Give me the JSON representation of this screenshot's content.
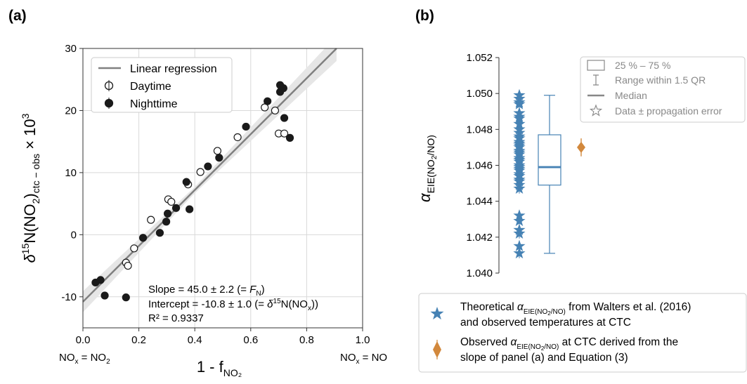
{
  "panel_labels": {
    "a": "(a)",
    "b": "(b)"
  },
  "colors": {
    "regression": "#808080",
    "ci_band": "#e6e6e6",
    "night": "#1a1a1a",
    "blue": "#4682b4",
    "orange": "#d2883c",
    "grid": "#d9d9d9",
    "legend_gray": "#888888"
  },
  "chart_data": [
    {
      "id": "a",
      "type": "scatter",
      "xlim": [
        0.0,
        1.0
      ],
      "ylim": [
        -15,
        30
      ],
      "xticks": [
        "0.0",
        "0.2",
        "0.4",
        "0.6",
        "0.8",
        "1.0"
      ],
      "yticks": [
        "-10",
        "0",
        "10",
        "20",
        "30"
      ],
      "grid": true,
      "legend_position": "upper-left",
      "xlabel": {
        "main": "1 - f",
        "sub": "NO₂"
      },
      "ylabel": {
        "pre": "δ",
        "sup": "15",
        "main": "N(NO",
        "sub1": "2",
        "close": ")",
        "sub2": "ctc − obs",
        "post": " × 10",
        "sup2": "3"
      },
      "x_end_labels": {
        "left": {
          "a": "NO",
          "b": "x",
          "c": " = NO",
          "d": "2"
        },
        "right": {
          "a": "NO",
          "b": "x",
          "c": " = NO"
        }
      },
      "legend": {
        "regression": "Linear regression",
        "day": "Daytime",
        "night": "Nighttime"
      },
      "regression": {
        "slope": 45.0,
        "intercept": -10.8
      },
      "annotation": {
        "slope": {
          "a": "Slope = 45.0 ± 2.2 (= ",
          "b": "F",
          "c": "N",
          "d": ")"
        },
        "intercept": {
          "a": "Intercept = -10.8 ± 1.0 (= ",
          "b": "δ",
          "c": "15",
          "d": "N(NO",
          "e": "x",
          "f": "))"
        },
        "r2": {
          "a": "R² = 0.9337"
        }
      },
      "series": [
        {
          "name": "Daytime",
          "x": [
            0.154,
            0.161,
            0.183,
            0.243,
            0.305,
            0.316,
            0.376,
            0.42,
            0.481,
            0.553,
            0.65,
            0.687,
            0.7,
            0.72
          ],
          "y": [
            -4.5,
            -5.0,
            -2.2,
            2.4,
            5.7,
            5.3,
            8.1,
            10.1,
            13.5,
            15.7,
            20.5,
            20.0,
            16.3,
            16.3
          ]
        },
        {
          "name": "Nighttime",
          "x": [
            0.045,
            0.063,
            0.078,
            0.154,
            0.215,
            0.275,
            0.298,
            0.303,
            0.333,
            0.37,
            0.381,
            0.447,
            0.487,
            0.583,
            0.66,
            0.705,
            0.705,
            0.711,
            0.717,
            0.72,
            0.74
          ],
          "y": [
            -7.7,
            -7.3,
            -9.8,
            -10.1,
            -0.5,
            0.3,
            2.1,
            3.4,
            4.3,
            8.5,
            4.1,
            11.0,
            12.4,
            17.4,
            21.5,
            23.0,
            24.1,
            23.7,
            23.6,
            18.8,
            15.6
          ]
        }
      ]
    },
    {
      "id": "b",
      "type": "box",
      "ylim": [
        1.04,
        1.052
      ],
      "yticks": [
        "1.040",
        "1.042",
        "1.044",
        "1.046",
        "1.048",
        "1.050",
        "1.052"
      ],
      "grid": false,
      "legend_position": "top-right",
      "ylabel": {
        "main": "α",
        "sub": "EIE(NO",
        "subsub": "2",
        "tail": "/NO)"
      },
      "legend": {
        "box": "25 % – 75 %",
        "range": "Range within 1.5 QR",
        "median": "Median",
        "data": "Data ± propagation error"
      },
      "box": {
        "q1": 1.0449,
        "median": 1.0459,
        "q3": 1.0477,
        "whisker_low": 1.0411,
        "whisker_high": 1.0499
      },
      "theoretical_values": [
        1.0411,
        1.0415,
        1.0422,
        1.0424,
        1.0429,
        1.0432,
        1.0447,
        1.0449,
        1.0451,
        1.0452,
        1.0454,
        1.0455,
        1.0457,
        1.0458,
        1.0459,
        1.046,
        1.0462,
        1.0463,
        1.0464,
        1.0466,
        1.0467,
        1.0468,
        1.047,
        1.0471,
        1.0472,
        1.0473,
        1.0475,
        1.0476,
        1.0478,
        1.048,
        1.0483,
        1.0486,
        1.0487,
        1.0489,
        1.0494,
        1.0495,
        1.0497,
        1.0499
      ],
      "observed": {
        "value": 1.047,
        "error": 0.0005
      },
      "bottom_legend": {
        "theoretical": {
          "a": "Theoretical ",
          "b": "α",
          "c": "EIE(NO",
          "d": "2",
          "e": "/NO)",
          "f": " from Walters et al. (2016)",
          "g": "and observed temperatures at CTC"
        },
        "observed": {
          "a": "Observed ",
          "b": "α",
          "c": "EIE(NO",
          "d": "2",
          "e": "/NO)",
          "f": " at CTC derived from the",
          "g": "slope of panel (a) and Equation (3)"
        }
      }
    }
  ]
}
